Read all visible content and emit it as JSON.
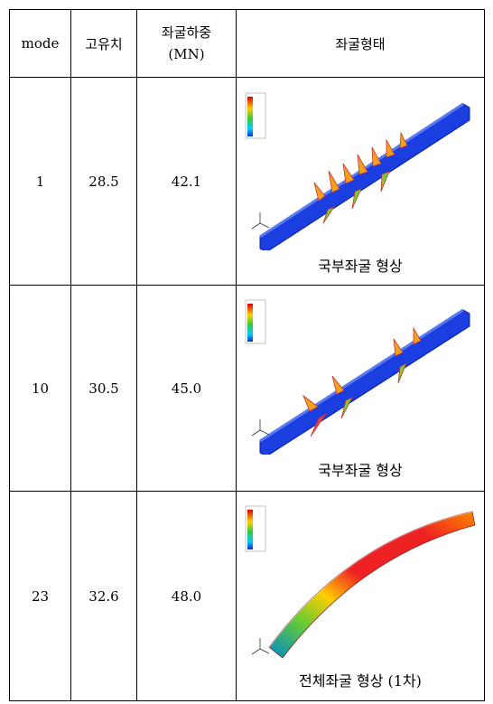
{
  "table": {
    "header": [
      "mode",
      "고유치",
      [
        "좌굴하중",
        "(MN)"
      ],
      "좌굴형태"
    ],
    "rows": [
      [
        "1",
        "28.5",
        "42.1",
        "국부좌굴 형상"
      ],
      [
        "10",
        "30.5",
        "45.0",
        "국부좌굴 형상"
      ],
      [
        "23",
        "32.6",
        "48.0",
        "전체좌굴 형상 (1차)"
      ]
    ]
  }
}
